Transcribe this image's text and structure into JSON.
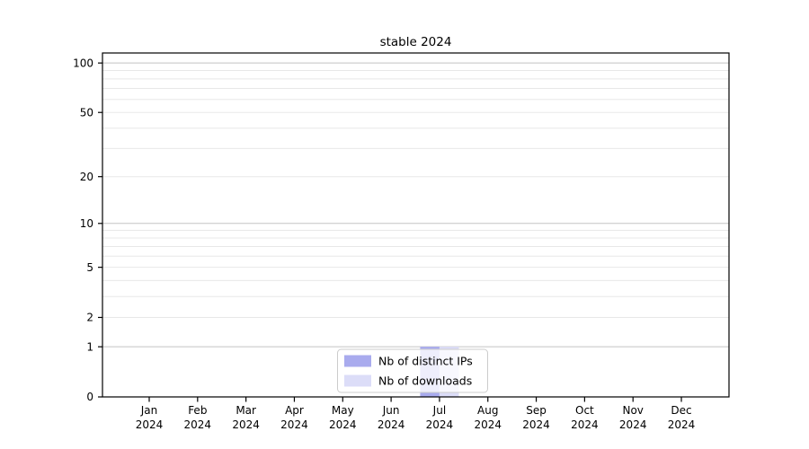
{
  "title": "stable 2024",
  "chart_data": {
    "type": "bar",
    "title": "stable 2024",
    "categories": [
      "Jan 2024",
      "Feb 2024",
      "Mar 2024",
      "Apr 2024",
      "May 2024",
      "Jun 2024",
      "Jul 2024",
      "Aug 2024",
      "Sep 2024",
      "Oct 2024",
      "Nov 2024",
      "Dec 2024"
    ],
    "series": [
      {
        "name": "Nb of distinct IPs",
        "color": "#a9abee",
        "values": [
          0,
          0,
          0,
          0,
          0,
          0,
          1,
          0,
          0,
          0,
          0,
          0
        ]
      },
      {
        "name": "Nb of downloads",
        "color": "#dcddf8",
        "values": [
          0,
          0,
          0,
          0,
          0,
          0,
          1,
          0,
          0,
          0,
          0,
          0
        ]
      }
    ],
    "yscale": "log1p",
    "ylim": [
      0,
      115
    ],
    "y_tick_labels": [
      0,
      1,
      2,
      5,
      10,
      20,
      50,
      100
    ],
    "y_major_gridlines": [
      1,
      10,
      100
    ],
    "y_minor_gridlines": [
      2,
      3,
      4,
      5,
      6,
      7,
      8,
      9,
      20,
      30,
      40,
      50,
      60,
      70,
      80,
      90
    ],
    "grid": "horizontal",
    "legend": {
      "position": "lower center",
      "entries": [
        "Nb of distinct IPs",
        "Nb of downloads"
      ]
    },
    "colors": {
      "major_grid": "#c3c3c3",
      "minor_grid": "#e8e8e8",
      "spine": "#000000",
      "legend_border": "#cccccc"
    }
  }
}
